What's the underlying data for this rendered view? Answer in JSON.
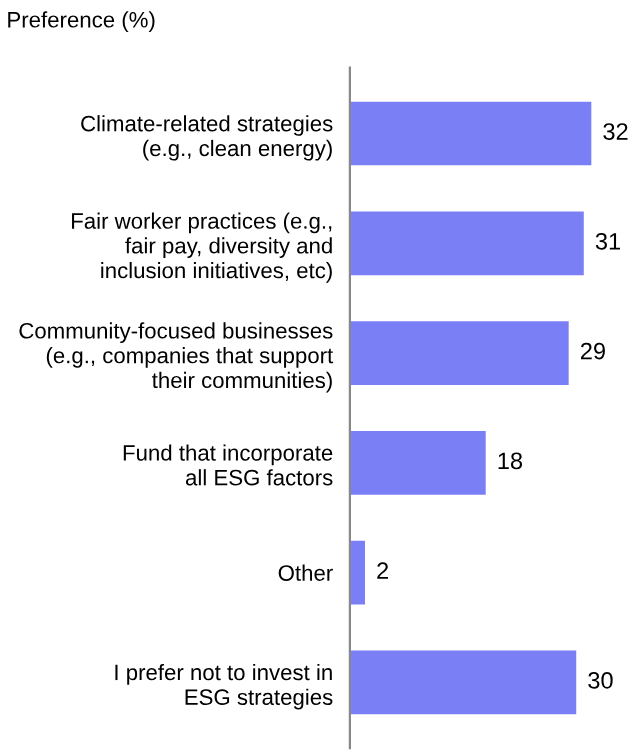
{
  "chart_data": {
    "type": "bar",
    "orientation": "horizontal",
    "title": "Preference (%)",
    "categories": [
      "Climate-related strategies\n(e.g., clean energy)",
      "Fair worker practices (e.g.,\nfair pay, diversity and\ninclusion initiatives, etc)",
      "Community-focused businesses\n(e.g., companies that support\ntheir communities)",
      "Fund that incorporate\nall ESG factors",
      "Other",
      "I prefer not to invest in\nESG strategies"
    ],
    "values": [
      32,
      31,
      29,
      18,
      2,
      30
    ],
    "color": "#7b7ff5",
    "data_labels": true,
    "grid": false,
    "legend": false
  }
}
